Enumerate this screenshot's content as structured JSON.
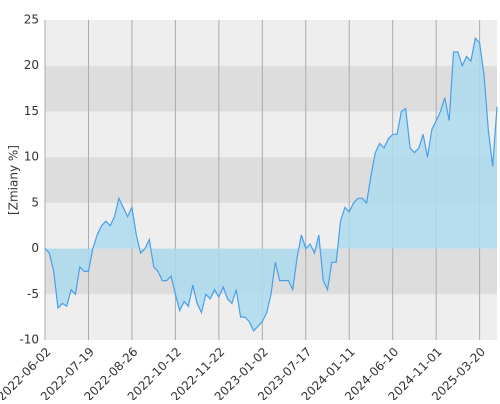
{
  "chart_data": {
    "type": "area",
    "y_label": "[Zmiany %]",
    "categories": [
      "2022-06-02",
      null,
      null,
      null,
      null,
      null,
      null,
      null,
      null,
      null,
      "2022-07-19",
      null,
      null,
      null,
      null,
      null,
      null,
      null,
      null,
      null,
      "2022-08-26",
      null,
      null,
      null,
      null,
      null,
      null,
      null,
      null,
      null,
      "2022-10-12",
      null,
      null,
      null,
      null,
      null,
      null,
      null,
      null,
      null,
      "2022-11-22",
      null,
      null,
      null,
      null,
      null,
      null,
      null,
      null,
      null,
      "2023-01-02",
      null,
      null,
      null,
      null,
      null,
      null,
      null,
      null,
      null,
      "2023-07-17",
      null,
      null,
      null,
      null,
      null,
      null,
      null,
      null,
      null,
      "2024-01-11",
      null,
      null,
      null,
      null,
      null,
      null,
      null,
      null,
      null,
      "2024-06-10",
      null,
      null,
      null,
      null,
      null,
      null,
      null,
      null,
      null,
      "2024-11-01",
      null,
      null,
      null,
      null,
      null,
      null,
      null,
      null,
      null,
      "2025-03-20",
      null,
      null,
      null,
      null
    ],
    "values": [
      0,
      -0.5,
      -2.5,
      -6.5,
      -6,
      -6.3,
      -4.5,
      -5,
      -2,
      -2.5,
      -2.5,
      0,
      1.5,
      2.5,
      3,
      2.5,
      3.5,
      5.5,
      4.5,
      3.5,
      4.5,
      1.5,
      -0.5,
      0,
      1,
      -2,
      -2.5,
      -3.5,
      -3.5,
      -3,
      -5,
      -6.8,
      -5.8,
      -6.3,
      -4,
      -6,
      -7,
      -5,
      -5.5,
      -4.5,
      -5.3,
      -4.2,
      -5.5,
      -6,
      -4.5,
      -7.5,
      -7.5,
      -8,
      -9,
      -8.5,
      -8,
      -7,
      -5,
      -1.5,
      -3.5,
      -3.5,
      -3.5,
      -4.5,
      -1,
      1.5,
      0,
      0.5,
      -0.5,
      1.5,
      -3.5,
      -4.5,
      -1.5,
      -1.5,
      3,
      4.5,
      4,
      5,
      5.5,
      5.5,
      5,
      8,
      10.5,
      11.5,
      11,
      12,
      12.5,
      12.5,
      15,
      15.3,
      11,
      10.5,
      11,
      12.5,
      10,
      13,
      14,
      15,
      16.5,
      14,
      21.5,
      21.5,
      20,
      21,
      20.5,
      23,
      22.5,
      19,
      13,
      9,
      15.5
    ],
    "color": "#4a9fe8",
    "fill": "#acdaef",
    "ylim": [
      -10,
      25
    ],
    "yticks": [
      -10,
      -5,
      0,
      5,
      10,
      15,
      20,
      25
    ],
    "grid": true
  }
}
